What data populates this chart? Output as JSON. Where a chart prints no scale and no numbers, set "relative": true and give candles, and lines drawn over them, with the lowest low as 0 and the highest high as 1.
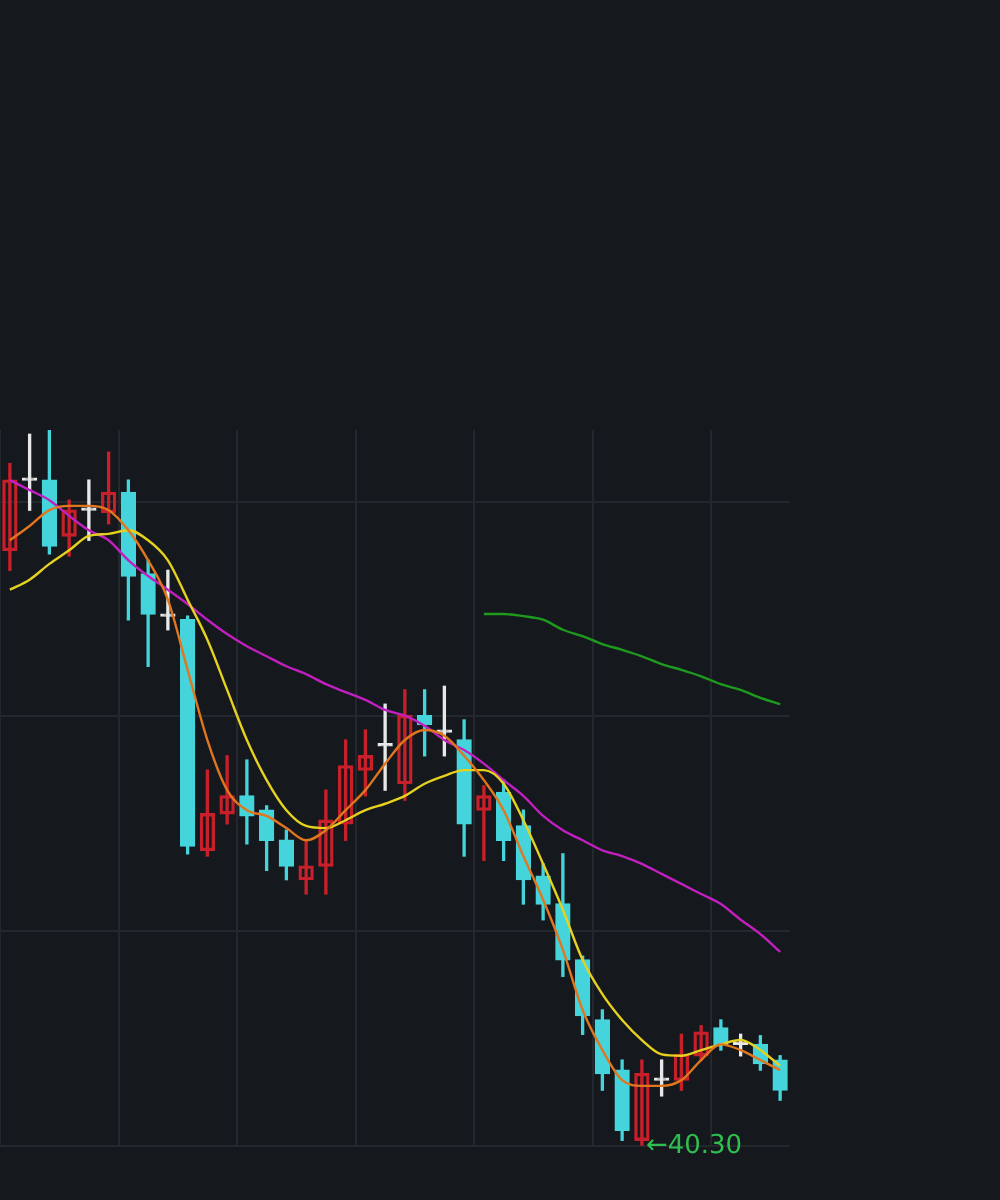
{
  "chart_data": {
    "type": "candlestick",
    "relative": true,
    "grid": true,
    "legend": false,
    "categories": [
      null,
      null,
      null,
      null,
      null,
      null,
      null,
      null,
      null,
      null,
      null,
      null,
      null,
      null,
      null,
      null,
      null,
      null,
      null,
      null,
      null,
      null,
      null,
      null,
      null,
      null,
      null,
      null,
      null,
      null,
      null,
      null,
      null,
      null,
      null,
      null,
      null,
      null,
      null,
      null
    ],
    "ohlc": [
      [
        0.832,
        0.953,
        0.804,
        0.93
      ],
      [
        0.93,
        0.994,
        0.888,
        0.93
      ],
      [
        0.93,
        1.0,
        0.827,
        0.838
      ],
      [
        0.852,
        0.902,
        0.824,
        0.888
      ],
      [
        0.888,
        0.93,
        0.846,
        0.888
      ],
      [
        0.885,
        0.969,
        0.869,
        0.913
      ],
      [
        0.913,
        0.93,
        0.735,
        0.796
      ],
      [
        0.799,
        0.818,
        0.67,
        0.743
      ],
      [
        0.74,
        0.804,
        0.721,
        0.74
      ],
      [
        0.735,
        0.74,
        0.408,
        0.419
      ],
      [
        0.413,
        0.525,
        0.405,
        0.464
      ],
      [
        0.464,
        0.545,
        0.45,
        0.489
      ],
      [
        0.489,
        0.539,
        0.422,
        0.461
      ],
      [
        0.469,
        0.475,
        0.385,
        0.427
      ],
      [
        0.427,
        0.441,
        0.372,
        0.391
      ],
      [
        0.372,
        0.427,
        0.352,
        0.391
      ],
      [
        0.391,
        0.497,
        0.352,
        0.455
      ],
      [
        0.45,
        0.567,
        0.427,
        0.531
      ],
      [
        0.525,
        0.581,
        0.489,
        0.545
      ],
      [
        0.559,
        0.617,
        0.497,
        0.559
      ],
      [
        0.506,
        0.637,
        0.483,
        0.601
      ],
      [
        0.601,
        0.637,
        0.545,
        0.589
      ],
      [
        0.578,
        0.642,
        0.545,
        0.578
      ],
      [
        0.567,
        0.595,
        0.405,
        0.45
      ],
      [
        0.469,
        0.503,
        0.399,
        0.489
      ],
      [
        0.494,
        0.511,
        0.399,
        0.427
      ],
      [
        0.447,
        0.469,
        0.338,
        0.372
      ],
      [
        0.377,
        0.394,
        0.316,
        0.338
      ],
      [
        0.338,
        0.408,
        0.237,
        0.26
      ],
      [
        0.26,
        0.265,
        0.156,
        0.182
      ],
      [
        0.176,
        0.19,
        0.078,
        0.101
      ],
      [
        0.106,
        0.12,
        0.008,
        0.022
      ],
      [
        0.008,
        0.12,
        0,
        0.101
      ],
      [
        0.092,
        0.12,
        0.07,
        0.092
      ],
      [
        0.092,
        0.156,
        0.078,
        0.128
      ],
      [
        0.126,
        0.168,
        0.12,
        0.159
      ],
      [
        0.165,
        0.176,
        0.134,
        0.142
      ],
      [
        0.142,
        0.156,
        0.126,
        0.142
      ],
      [
        0.142,
        0.154,
        0.106,
        0.115
      ],
      [
        0.12,
        0.126,
        0.064,
        0.078
      ]
    ],
    "colors": [
      "#c8202a",
      "#e8e8e8",
      "#45d4dc",
      "#c8202a",
      "#e8e8e8",
      "#c8202a",
      "#45d4dc",
      "#45d4dc",
      "#e8e8e8",
      "#45d4dc",
      "#c8202a",
      "#c8202a",
      "#45d4dc",
      "#45d4dc",
      "#45d4dc",
      "#c8202a",
      "#c8202a",
      "#c8202a",
      "#c8202a",
      "#e8e8e8",
      "#c8202a",
      "#45d4dc",
      "#e8e8e8",
      "#45d4dc",
      "#c8202a",
      "#45d4dc",
      "#45d4dc",
      "#45d4dc",
      "#45d4dc",
      "#45d4dc",
      "#45d4dc",
      "#45d4dc",
      "#c8202a",
      "#e8e8e8",
      "#c8202a",
      "#c8202a",
      "#45d4dc",
      "#e8e8e8",
      "#45d4dc",
      "#45d4dc"
    ],
    "series": [
      {
        "type": "line",
        "color": "#e0771e",
        "values": [
          0.846,
          0.866,
          0.888,
          0.894,
          0.894,
          0.888,
          0.86,
          0.818,
          0.763,
          0.665,
          0.567,
          0.497,
          0.469,
          0.461,
          0.444,
          0.427,
          0.441,
          0.469,
          0.497,
          0.534,
          0.567,
          0.581,
          0.573,
          0.545,
          0.511,
          0.469,
          0.405,
          0.344,
          0.274,
          0.19,
          0.134,
          0.092,
          0.084,
          0.084,
          0.092,
          0.12,
          0.142,
          0.134,
          0.12,
          0.106
        ]
      },
      {
        "type": "line",
        "color": "#e6d21e",
        "values": [
          0.777,
          0.791,
          0.813,
          0.832,
          0.852,
          0.855,
          0.86,
          0.846,
          0.818,
          0.763,
          0.707,
          0.637,
          0.567,
          0.511,
          0.469,
          0.447,
          0.444,
          0.455,
          0.469,
          0.478,
          0.489,
          0.506,
          0.517,
          0.525,
          0.525,
          0.506,
          0.455,
          0.394,
          0.33,
          0.26,
          0.212,
          0.176,
          0.148,
          0.128,
          0.126,
          0.134,
          0.142,
          0.148,
          0.134,
          0.112
        ]
      },
      {
        "type": "line",
        "color": "#c020c0",
        "values": [
          0.93,
          0.916,
          0.902,
          0.88,
          0.86,
          0.846,
          0.818,
          0.796,
          0.777,
          0.757,
          0.735,
          0.715,
          0.698,
          0.684,
          0.67,
          0.659,
          0.645,
          0.634,
          0.623,
          0.609,
          0.601,
          0.587,
          0.567,
          0.553,
          0.534,
          0.511,
          0.489,
          0.461,
          0.441,
          0.427,
          0.413,
          0.405,
          0.394,
          0.38,
          0.366,
          0.352,
          0.338,
          0.316,
          0.296,
          0.271
        ]
      },
      {
        "type": "line",
        "color": "#1e9a1e",
        "values": [
          null,
          null,
          null,
          null,
          null,
          null,
          null,
          null,
          null,
          null,
          null,
          null,
          null,
          null,
          null,
          null,
          null,
          null,
          null,
          null,
          null,
          null,
          null,
          null,
          0.743,
          0.743,
          0.74,
          0.735,
          0.721,
          0.712,
          0.701,
          0.693,
          0.684,
          0.673,
          0.665,
          0.656,
          0.645,
          0.637,
          0.626,
          0.617
        ]
      }
    ],
    "annotations": [
      "←40.30"
    ]
  }
}
